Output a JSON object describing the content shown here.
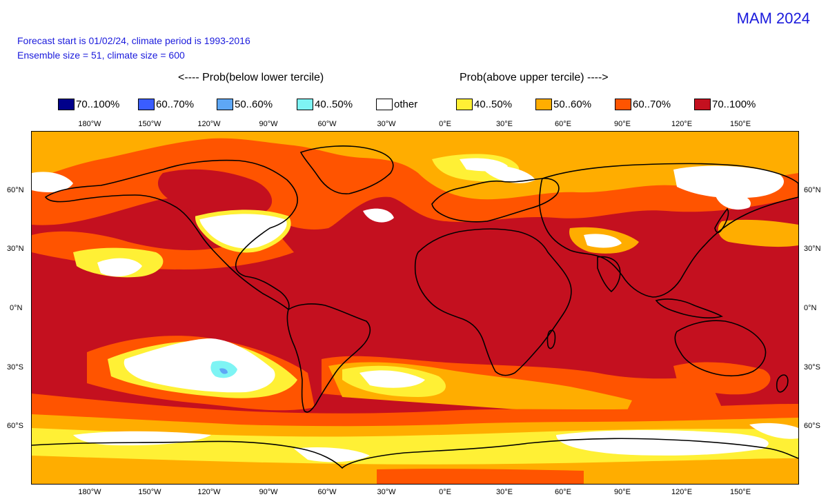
{
  "header": {
    "title": "MAM 2024",
    "forecast_line": "Forecast start is 01/02/24, climate period is 1993-2016",
    "ensemble_line": "Ensemble size = 51, climate size = 600"
  },
  "legend": {
    "below_label": "<---- Prob(below lower tercile)",
    "above_label": "Prob(above upper tercile) ---->",
    "items": [
      {
        "label": "70..100%",
        "color": "#00008b"
      },
      {
        "label": "60..70%",
        "color": "#3a5dff"
      },
      {
        "label": "50..60%",
        "color": "#5ea7f5"
      },
      {
        "label": "40..50%",
        "color": "#7ef4f4"
      },
      {
        "label": "other",
        "color": "#ffffff"
      },
      {
        "label": "40..50%",
        "color": "#fff035"
      },
      {
        "label": "50..60%",
        "color": "#ffad00"
      },
      {
        "label": "60..70%",
        "color": "#ff5400"
      },
      {
        "label": "70..100%",
        "color": "#c4101f"
      }
    ]
  },
  "axes": {
    "lon_labels": [
      "180°W",
      "150°W",
      "120°W",
      "90°W",
      "60°W",
      "30°W",
      "0°E",
      "30°E",
      "60°E",
      "90°E",
      "120°E",
      "150°E"
    ],
    "lat_labels": [
      "60°N",
      "30°N",
      "0°N",
      "30°S",
      "60°S"
    ]
  },
  "colors": {
    "cat_70_100": "#c4101f",
    "cat_60_70": "#ff5400",
    "cat_50_60": "#ffad00",
    "cat_40_50": "#fff035",
    "other": "#ffffff",
    "below_40_50": "#7ef4f4",
    "below_50_60": "#5ea7f5"
  }
}
